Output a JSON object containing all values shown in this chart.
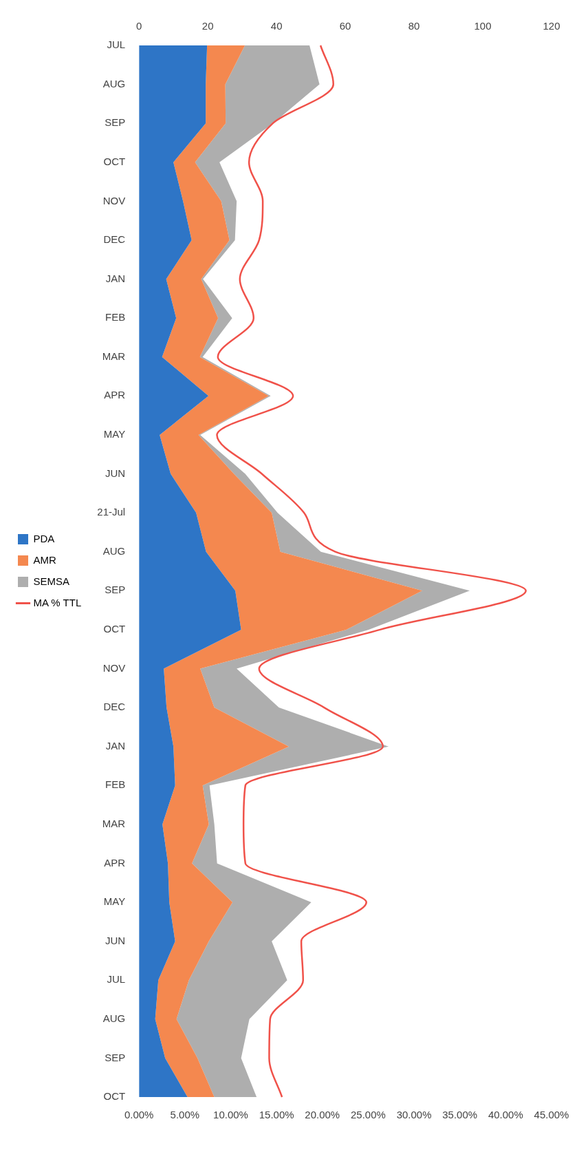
{
  "chart_data": {
    "type": "area",
    "stacked": true,
    "orientation": "horizontal",
    "categories": [
      "JUL",
      "AUG",
      "SEP",
      "OCT",
      "NOV",
      "DEC",
      "JAN",
      "FEB",
      "MAR",
      "APR",
      "MAY",
      "JUN",
      "21-Jul",
      "AUG",
      "SEP",
      "OCT",
      "NOV",
      "DEC",
      "JAN",
      "FEB",
      "MAR",
      "APR",
      "MAY",
      "JUN",
      "JUL",
      "AUG",
      "SEP",
      "OCT"
    ],
    "series": [
      {
        "name": "PDA",
        "color": "#2e75c6",
        "values": [
          19.8,
          19.4,
          19.4,
          10.0,
          12.8,
          15.3,
          7.9,
          10.8,
          6.7,
          20.2,
          6.0,
          9.2,
          16.6,
          19.5,
          28.0,
          29.7,
          7.2,
          8.0,
          10.0,
          10.5,
          6.8,
          8.4,
          8.8,
          10.5,
          5.6,
          4.7,
          7.6,
          14.1
        ]
      },
      {
        "name": "AMR",
        "color": "#f4884f",
        "values": [
          11.0,
          5.7,
          5.8,
          6.3,
          11.1,
          11.0,
          10.2,
          12.2,
          11.0,
          17.5,
          11.3,
          18.4,
          22.0,
          21.6,
          54.4,
          30.6,
          10.6,
          13.9,
          33.6,
          8.0,
          13.5,
          7.0,
          18.4,
          9.8,
          8.9,
          6.2,
          9.4,
          7.8
        ]
      },
      {
        "name": "SEMSA",
        "color": "#aeaeae",
        "values": [
          18.8,
          27.4,
          13.8,
          7.1,
          4.5,
          1.6,
          0.5,
          4.1,
          0.8,
          0.6,
          0.5,
          3.3,
          1.7,
          11.8,
          13.8,
          6.5,
          10.6,
          18.8,
          29.0,
          2.0,
          1.6,
          7.3,
          22.9,
          18.3,
          28.6,
          21.2,
          12.7,
          12.3
        ]
      },
      {
        "name": "MA % TTL",
        "type": "line",
        "axis": "x2",
        "color": "#f0524a",
        "values": [
          19.8,
          21.2,
          14.6,
          12.0,
          13.5,
          13.1,
          11.0,
          12.5,
          8.6,
          16.8,
          8.5,
          13.4,
          18.0,
          21.4,
          42.2,
          26.3,
          13.1,
          20.2,
          26.6,
          11.6,
          11.4,
          11.6,
          24.8,
          17.7,
          17.9,
          14.3,
          14.2,
          15.6
        ]
      }
    ],
    "xlim": [
      0,
      120
    ],
    "xticks": [
      0,
      20,
      40,
      60,
      80,
      100,
      120
    ],
    "x2lim": [
      0,
      45
    ],
    "x2ticks": [
      {
        "value": 0,
        "label": "0.00%"
      },
      {
        "value": 5,
        "label": "5.00%"
      },
      {
        "value": 10,
        "label": "10.00%"
      },
      {
        "value": 15,
        "label": "15.00%"
      },
      {
        "value": 20,
        "label": "20.00%"
      },
      {
        "value": 25,
        "label": "25.00%"
      },
      {
        "value": 30,
        "label": "30.00%"
      },
      {
        "value": 35,
        "label": "35.00%"
      },
      {
        "value": 40,
        "label": "40.00%"
      },
      {
        "value": 45,
        "label": "45.00%"
      }
    ],
    "legend": "left",
    "marker": "none",
    "line_style": "solid"
  }
}
